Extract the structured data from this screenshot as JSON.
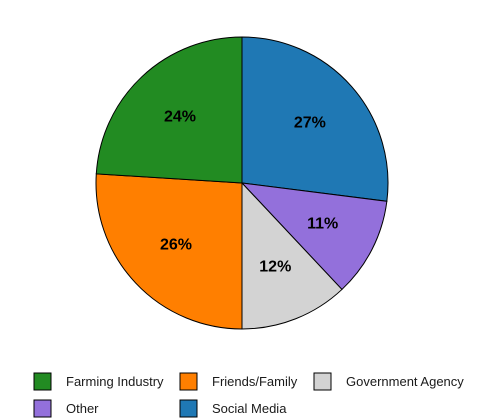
{
  "chart_data": {
    "type": "pie",
    "legend_position": "bottom",
    "slices": [
      {
        "name": "Social Media",
        "value": 27,
        "label": "27%",
        "color": "#1f78b4"
      },
      {
        "name": "Other",
        "value": 11,
        "label": "11%",
        "color": "#9370db"
      },
      {
        "name": "Government Agency",
        "value": 12,
        "label": "12%",
        "color": "#d3d3d3"
      },
      {
        "name": "Friends/Family",
        "value": 26,
        "label": "26%",
        "color": "#ff7f00"
      },
      {
        "name": "Farming Industry",
        "value": 24,
        "label": "24%",
        "color": "#228b22"
      }
    ],
    "legend": [
      {
        "name": "Farming Industry",
        "color": "#228b22"
      },
      {
        "name": "Friends/Family",
        "color": "#ff7f00"
      },
      {
        "name": "Government Agency",
        "color": "#d3d3d3"
      },
      {
        "name": "Other",
        "color": "#9370db"
      },
      {
        "name": "Social Media",
        "color": "#1f78b4"
      }
    ]
  }
}
